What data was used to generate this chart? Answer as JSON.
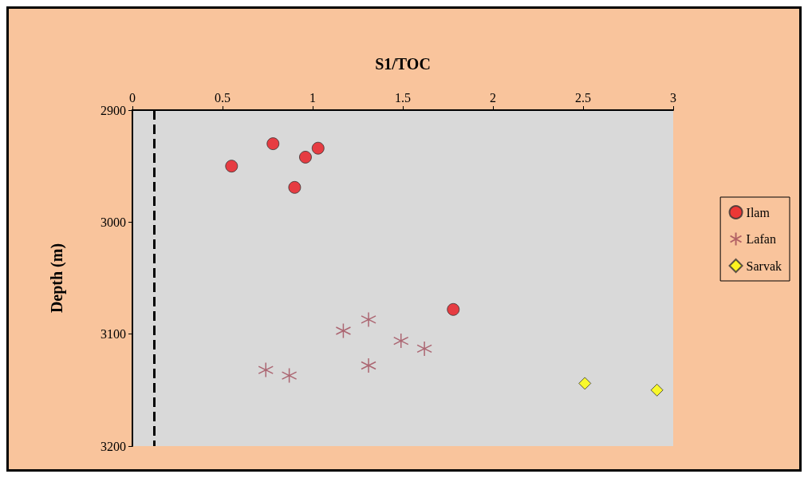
{
  "chart_data": {
    "type": "scatter",
    "xlabel": "S1/TOC",
    "ylabel": "Depth (m)",
    "xlim": [
      0,
      3
    ],
    "xticks": [
      0,
      0.5,
      1,
      1.5,
      2,
      2.5,
      3
    ],
    "ylim": [
      3200,
      2900
    ],
    "yticks": [
      2900,
      3000,
      3100,
      3200
    ],
    "grid": false,
    "legend": "right",
    "ref_lines": [
      {
        "axis": "x",
        "value": 0.12,
        "color": "#000000",
        "line_style": "dashed"
      }
    ],
    "series": [
      {
        "name": "Ilam",
        "color": "#e8141c",
        "marker": "circle",
        "x": [
          0.55,
          0.78,
          0.96,
          1.03,
          0.9,
          1.78
        ],
        "values": [
          2950,
          2930,
          2942,
          2934,
          2969,
          3078
        ]
      },
      {
        "name": "Lafan",
        "color": "#a04858",
        "marker": "cross",
        "x": [
          0.74,
          0.87,
          1.17,
          1.31,
          1.31,
          1.49,
          1.62
        ],
        "values": [
          3132,
          3137,
          3097,
          3087,
          3128,
          3106,
          3113
        ]
      },
      {
        "name": "Sarvak",
        "color": "#ffff00",
        "marker": "diamond",
        "x": [
          2.51,
          2.91
        ],
        "values": [
          3144,
          3150
        ]
      }
    ]
  }
}
